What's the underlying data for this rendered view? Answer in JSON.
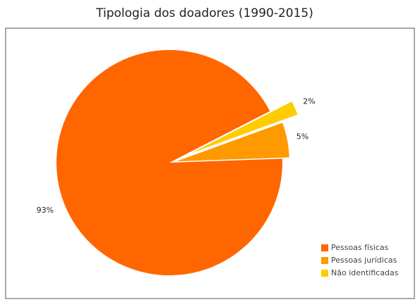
{
  "chart_data": {
    "type": "pie",
    "title": "Tipologia dos doadores (1990-2015)",
    "categories": [
      "Pessoas físicas",
      "Pessoas jurídicas",
      "Não identificadas"
    ],
    "values": [
      93,
      5,
      2
    ],
    "value_labels": [
      "93%",
      "5%",
      "2%"
    ],
    "colors": [
      "#ff6600",
      "#ff9900",
      "#ffcc00"
    ]
  }
}
